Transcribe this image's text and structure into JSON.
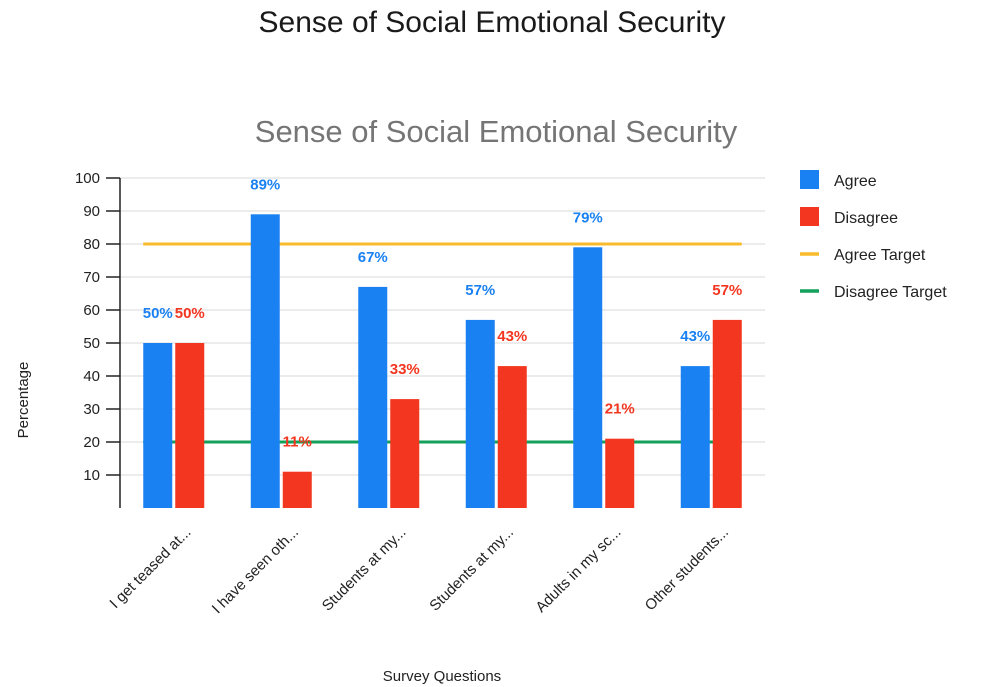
{
  "page_title": "Sense of Social Emotional Security",
  "colors": {
    "agree": "#1a81f2",
    "disagree": "#f3361f",
    "agree_target": "#f8bb2c",
    "disagree_target": "#12a05a",
    "grid": "#d9d9d9",
    "axis": "#222222"
  },
  "chart_data": {
    "type": "bar",
    "title": "Sense of Social Emotional Security",
    "xlabel": "Survey Questions",
    "ylabel": "Percentage",
    "ylim": [
      0,
      100
    ],
    "yticks": [
      10,
      20,
      30,
      40,
      50,
      60,
      70,
      80,
      90,
      100
    ],
    "grid": true,
    "legend_position": "right",
    "categories": [
      "I get teased at...",
      "I have seen oth...",
      "Students at my...",
      "Students at my...",
      "Adults in my sc...",
      "Other students..."
    ],
    "series": [
      {
        "name": "Agree",
        "type": "bar",
        "values": [
          50,
          89,
          67,
          57,
          79,
          43
        ],
        "labels": [
          "50%",
          "89%",
          "67%",
          "57%",
          "79%",
          "43%"
        ]
      },
      {
        "name": "Disagree",
        "type": "bar",
        "values": [
          50,
          11,
          33,
          43,
          21,
          57
        ],
        "labels": [
          "50%",
          "11%",
          "33%",
          "43%",
          "21%",
          "57%"
        ]
      },
      {
        "name": "Agree Target",
        "type": "line",
        "values": [
          80,
          80,
          80,
          80,
          80,
          80
        ]
      },
      {
        "name": "Disagree Target",
        "type": "line",
        "values": [
          20,
          20,
          20,
          20,
          20,
          20
        ]
      }
    ]
  }
}
